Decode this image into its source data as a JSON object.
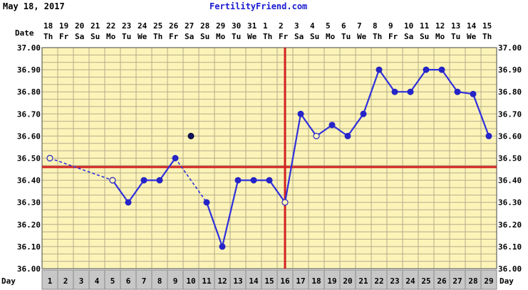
{
  "header": {
    "date": "May 18, 2017",
    "site": "FertilityFriend.com"
  },
  "colors": {
    "plot_bg": "#fcf3b8",
    "grid": "#b3ad8a",
    "line": "#2f2fdd",
    "marker": "#2424c8",
    "flagged_marker": "#101060",
    "coverline": "#d42020",
    "ovulation_line": "#d42020",
    "cycle_day_cell": "#c7c7c7"
  },
  "chart_data": {
    "type": "line",
    "title": "",
    "row_labels": {
      "date": "Date",
      "day": "Day"
    },
    "dates": [
      "18",
      "19",
      "20",
      "21",
      "22",
      "23",
      "24",
      "25",
      "26",
      "27",
      "28",
      "29",
      "30",
      "31",
      "1",
      "2",
      "3",
      "4",
      "5",
      "6",
      "7",
      "8",
      "9",
      "10",
      "11",
      "12",
      "13",
      "14",
      "15"
    ],
    "weekdays": [
      "Th",
      "Fr",
      "Sa",
      "Su",
      "Mo",
      "Tu",
      "We",
      "Th",
      "Fr",
      "Sa",
      "Su",
      "Mo",
      "Tu",
      "We",
      "Th",
      "Fr",
      "Sa",
      "Su",
      "Mo",
      "Tu",
      "We",
      "Th",
      "Fr",
      "Sa",
      "Su",
      "Mo",
      "Tu",
      "We",
      "Th"
    ],
    "cycle_days": [
      "1",
      "2",
      "3",
      "4",
      "5",
      "6",
      "7",
      "8",
      "9",
      "10",
      "11",
      "12",
      "13",
      "14",
      "15",
      "16",
      "17",
      "18",
      "19",
      "20",
      "21",
      "22",
      "23",
      "24",
      "25",
      "26",
      "27",
      "28",
      "29"
    ],
    "ylim": [
      36.0,
      37.0
    ],
    "yticks": [
      "36.00",
      "36.10",
      "36.20",
      "36.30",
      "36.40",
      "36.50",
      "36.60",
      "36.70",
      "36.80",
      "36.90",
      "37.00"
    ],
    "grid": true,
    "coverline": 36.46,
    "ovulation_day": 16,
    "series": [
      {
        "day": 1,
        "temp": 36.5,
        "marker": "open"
      },
      {
        "day": 5,
        "temp": 36.4,
        "marker": "open"
      },
      {
        "day": 6,
        "temp": 36.3,
        "marker": "filled"
      },
      {
        "day": 7,
        "temp": 36.4,
        "marker": "filled"
      },
      {
        "day": 8,
        "temp": 36.4,
        "marker": "filled"
      },
      {
        "day": 9,
        "temp": 36.5,
        "marker": "filled"
      },
      {
        "day": 10,
        "temp": 36.6,
        "marker": "flagged"
      },
      {
        "day": 11,
        "temp": 36.3,
        "marker": "filled"
      },
      {
        "day": 12,
        "temp": 36.1,
        "marker": "filled"
      },
      {
        "day": 13,
        "temp": 36.4,
        "marker": "filled"
      },
      {
        "day": 14,
        "temp": 36.4,
        "marker": "filled"
      },
      {
        "day": 15,
        "temp": 36.4,
        "marker": "filled"
      },
      {
        "day": 16,
        "temp": 36.3,
        "marker": "open"
      },
      {
        "day": 17,
        "temp": 36.7,
        "marker": "filled"
      },
      {
        "day": 18,
        "temp": 36.6,
        "marker": "open"
      },
      {
        "day": 19,
        "temp": 36.65,
        "marker": "filled"
      },
      {
        "day": 20,
        "temp": 36.6,
        "marker": "filled"
      },
      {
        "day": 21,
        "temp": 36.7,
        "marker": "filled"
      },
      {
        "day": 22,
        "temp": 36.9,
        "marker": "filled"
      },
      {
        "day": 23,
        "temp": 36.8,
        "marker": "filled"
      },
      {
        "day": 24,
        "temp": 36.8,
        "marker": "filled"
      },
      {
        "day": 25,
        "temp": 36.9,
        "marker": "filled"
      },
      {
        "day": 26,
        "temp": 36.9,
        "marker": "filled"
      },
      {
        "day": 27,
        "temp": 36.8,
        "marker": "filled"
      },
      {
        "day": 28,
        "temp": 36.79,
        "marker": "filled"
      },
      {
        "day": 29,
        "temp": 36.6,
        "marker": "filled"
      }
    ],
    "segments": [
      {
        "from": 1,
        "to": 5,
        "style": "dashed"
      },
      {
        "from": 5,
        "to": 9,
        "style": "solid"
      },
      {
        "from": 9,
        "to": 11,
        "style": "dashed"
      },
      {
        "from": 11,
        "to": 29,
        "style": "solid"
      }
    ]
  }
}
